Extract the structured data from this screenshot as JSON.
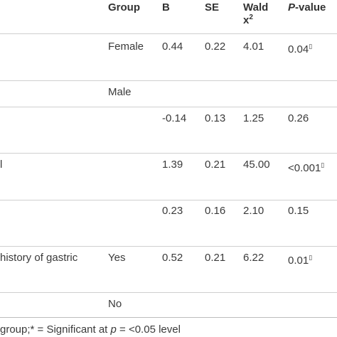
{
  "header": {
    "group": "Group",
    "b": "B",
    "se": "SE",
    "wald_line1": "Wald",
    "wald_line2": "x",
    "wald_sup": "2",
    "pvalue_italic": "P",
    "pvalue_rest": "-value"
  },
  "rows": [
    {
      "label": "",
      "group": "Female",
      "b": "0.44",
      "se": "0.22",
      "wald": "4.01",
      "p": "0.04",
      "p_mark": "▯"
    },
    {
      "label": "",
      "group": "Male",
      "b": "",
      "se": "",
      "wald": "",
      "p": "",
      "p_mark": ""
    },
    {
      "label": "",
      "group": "",
      "b": "-0.14",
      "se": "0.13",
      "wald": "1.25",
      "p": "0.26",
      "p_mark": ""
    },
    {
      "label": "l",
      "group": "",
      "b": "1.39",
      "se": "0.21",
      "wald": "45.00",
      "p": "<0.001",
      "p_mark": "▯"
    },
    {
      "label": "",
      "group": "",
      "b": "0.23",
      "se": "0.16",
      "wald": "2.10",
      "p": "0.15",
      "p_mark": ""
    },
    {
      "label": "history of gastric",
      "group": "Yes",
      "b": "0.52",
      "se": "0.21",
      "wald": "6.22",
      "p": "0.01",
      "p_mark": "▯"
    },
    {
      "label": "",
      "group": "No",
      "b": "",
      "se": "",
      "wald": "",
      "p": "",
      "p_mark": ""
    }
  ],
  "footer": {
    "text_before": "group;* = Significant at ",
    "italic_p": "p",
    "text_after": " = <0.05 level"
  }
}
